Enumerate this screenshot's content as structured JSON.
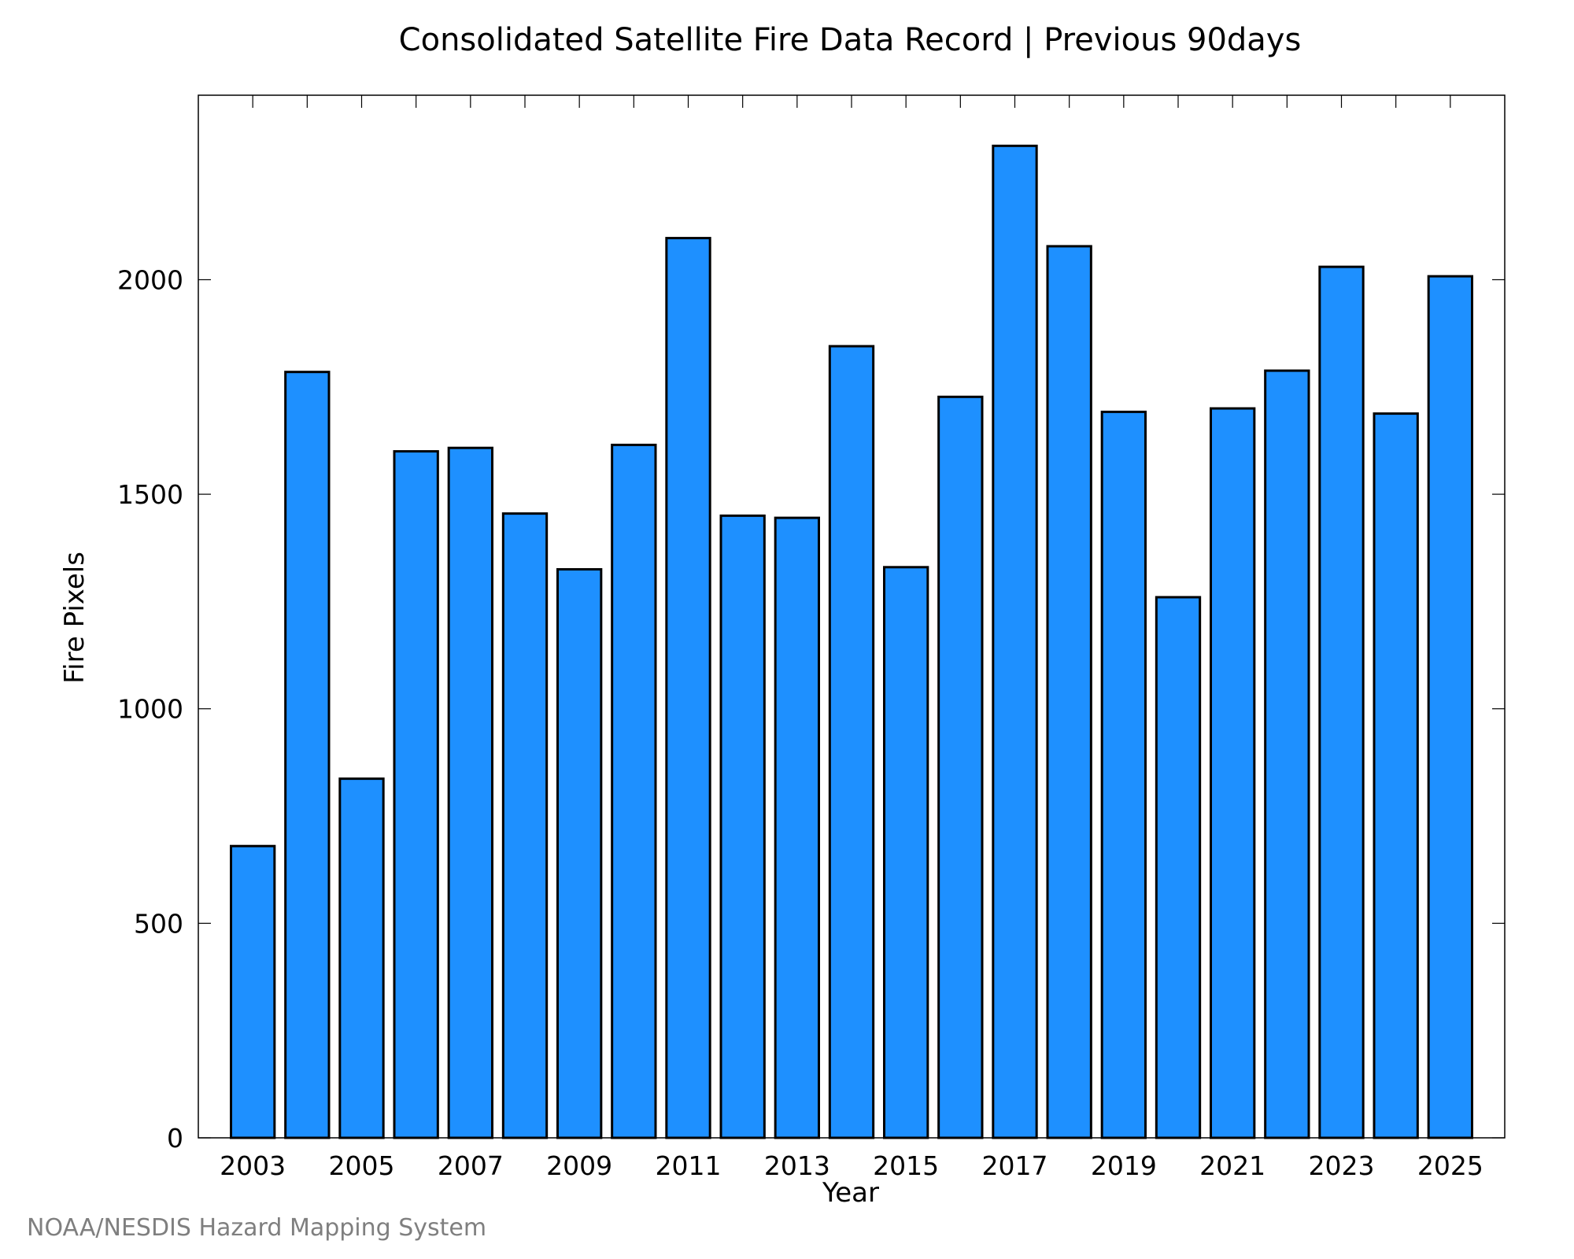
{
  "chart_data": {
    "type": "bar",
    "title": "Consolidated Satellite Fire Data Record | Previous 90days",
    "xlabel": "Year",
    "ylabel": "Fire Pixels",
    "categories": [
      "2003",
      "2004",
      "2005",
      "2006",
      "2007",
      "2008",
      "2009",
      "2010",
      "2011",
      "2012",
      "2013",
      "2014",
      "2015",
      "2016",
      "2017",
      "2018",
      "2019",
      "2020",
      "2021",
      "2022",
      "2023",
      "2024",
      "2025"
    ],
    "values": [
      680,
      1785,
      837,
      1600,
      1608,
      1455,
      1325,
      1615,
      2097,
      1450,
      1445,
      1845,
      1330,
      1727,
      2312,
      2078,
      1692,
      1260,
      1700,
      1788,
      2030,
      1688,
      2008
    ],
    "x_tick_labels": [
      "2003",
      "2005",
      "2007",
      "2009",
      "2011",
      "2013",
      "2015",
      "2017",
      "2019",
      "2021",
      "2023",
      "2025"
    ],
    "y_ticks": [
      0,
      500,
      1000,
      1500,
      2000
    ],
    "y_tick_labels": [
      "0",
      "500",
      "1000",
      "1500",
      "2000"
    ],
    "ylim": [
      0,
      2430
    ],
    "xlim": [
      2002,
      2026
    ],
    "bar_color": "#1e90ff",
    "grid": false,
    "credit": "NOAA/NESDIS Hazard Mapping System"
  }
}
